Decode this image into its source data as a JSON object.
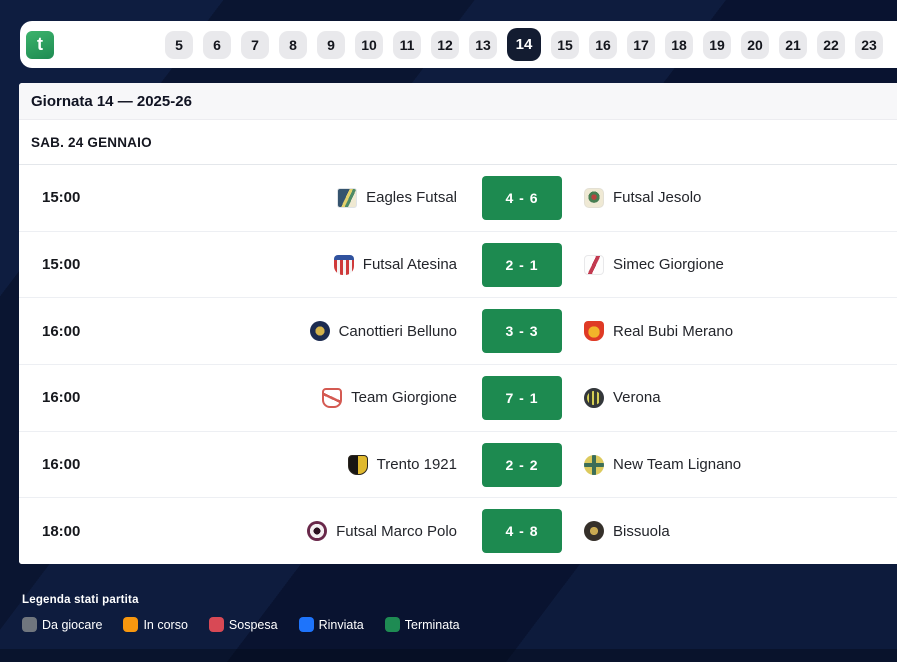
{
  "app": {
    "logo_letter": "t"
  },
  "rounds": {
    "selected": "14",
    "items": [
      "5",
      "6",
      "7",
      "8",
      "9",
      "10",
      "11",
      "12",
      "13",
      "14",
      "15",
      "16",
      "17",
      "18",
      "19",
      "20",
      "21",
      "22",
      "23"
    ]
  },
  "header": {
    "title": "Giornata 14 — 2025-26"
  },
  "date_header": "SAB. 24 GENNAIO",
  "matches": [
    {
      "time": "15:00",
      "home": {
        "name": "Eagles Futsal",
        "logo": "eagles-futsal-crest"
      },
      "score": "4 - 6",
      "away": {
        "name": "Futsal Jesolo",
        "logo": "futsal-jesolo-crest"
      },
      "status": "Terminata"
    },
    {
      "time": "15:00",
      "home": {
        "name": "Futsal Atesina",
        "logo": "futsal-atesina-crest"
      },
      "score": "2 - 1",
      "away": {
        "name": "Simec Giorgione",
        "logo": "simec-giorgione-crest"
      },
      "status": "Terminata"
    },
    {
      "time": "16:00",
      "home": {
        "name": "Canottieri Belluno",
        "logo": "canottieri-belluno-crest"
      },
      "score": "3 - 3",
      "away": {
        "name": "Real Bubi Merano",
        "logo": "real-bubi-merano-crest"
      },
      "status": "Terminata"
    },
    {
      "time": "16:00",
      "home": {
        "name": "Team Giorgione",
        "logo": "team-giorgione-crest"
      },
      "score": "7 - 1",
      "away": {
        "name": "Verona",
        "logo": "verona-crest"
      },
      "status": "Terminata"
    },
    {
      "time": "16:00",
      "home": {
        "name": "Trento 1921",
        "logo": "trento-1921-crest"
      },
      "score": "2 - 2",
      "away": {
        "name": "New Team Lignano",
        "logo": "new-team-lignano-crest"
      },
      "status": "Terminata"
    },
    {
      "time": "18:00",
      "home": {
        "name": "Futsal Marco Polo",
        "logo": "futsal-marco-polo-crest"
      },
      "score": "4 - 8",
      "away": {
        "name": "Bissuola",
        "logo": "bissuola-crest"
      },
      "status": "Terminata"
    }
  ],
  "legend": {
    "title": "Legenda stati partita",
    "items": [
      {
        "label": "Da giocare",
        "color": "#70767e"
      },
      {
        "label": "In corso",
        "color": "#f8970e"
      },
      {
        "label": "Sospesa",
        "color": "#d84955"
      },
      {
        "label": "Rinviata",
        "color": "#1e74fb"
      },
      {
        "label": "Terminata",
        "color": "#1e8b53"
      }
    ]
  },
  "colors": {
    "score_green": "#1d8a50",
    "selected_round_bg": "#131c31",
    "background_navy": "#0c1836"
  }
}
